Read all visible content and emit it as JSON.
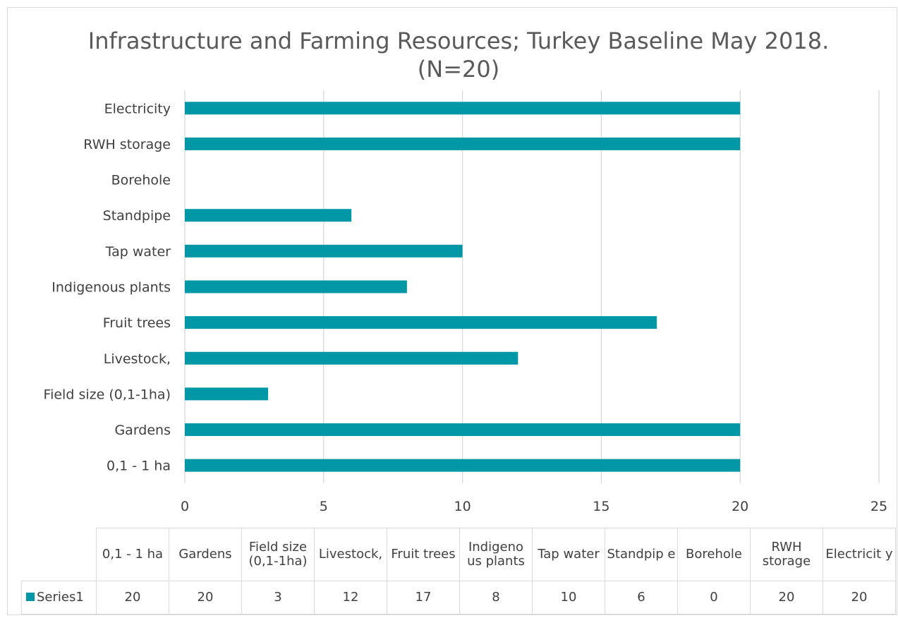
{
  "chart_data": {
    "type": "bar",
    "orientation": "horizontal",
    "title": "Infrastructure and Farming Resources; Turkey Baseline May 2018. (N=20)",
    "xlabel": "",
    "ylabel": "",
    "xlim": [
      0,
      25
    ],
    "x_ticks": [
      0,
      5,
      10,
      15,
      20,
      25
    ],
    "grid": true,
    "legend": "data-table-bottom",
    "bar_color": "#0097a7",
    "categories": [
      "0,1 - 1 ha",
      "Gardens",
      "Field size (0,1-1ha)",
      "Livestock,",
      "Fruit trees",
      "Indigenous plants",
      "Tap water",
      "Standpipe",
      "Borehole",
      "RWH storage",
      "Electricity"
    ],
    "table_headers": [
      "0,1 - 1 ha",
      "Gardens",
      "Field size (0,1-1ha)",
      "Livestock,",
      "Fruit trees",
      "Indigeno us plants",
      "Tap water",
      "Standpip e",
      "Borehole",
      "RWH storage",
      "Electricit y"
    ],
    "series": [
      {
        "name": "Series1",
        "values": [
          20,
          20,
          3,
          12,
          17,
          8,
          10,
          6,
          0,
          20,
          20
        ]
      }
    ]
  }
}
